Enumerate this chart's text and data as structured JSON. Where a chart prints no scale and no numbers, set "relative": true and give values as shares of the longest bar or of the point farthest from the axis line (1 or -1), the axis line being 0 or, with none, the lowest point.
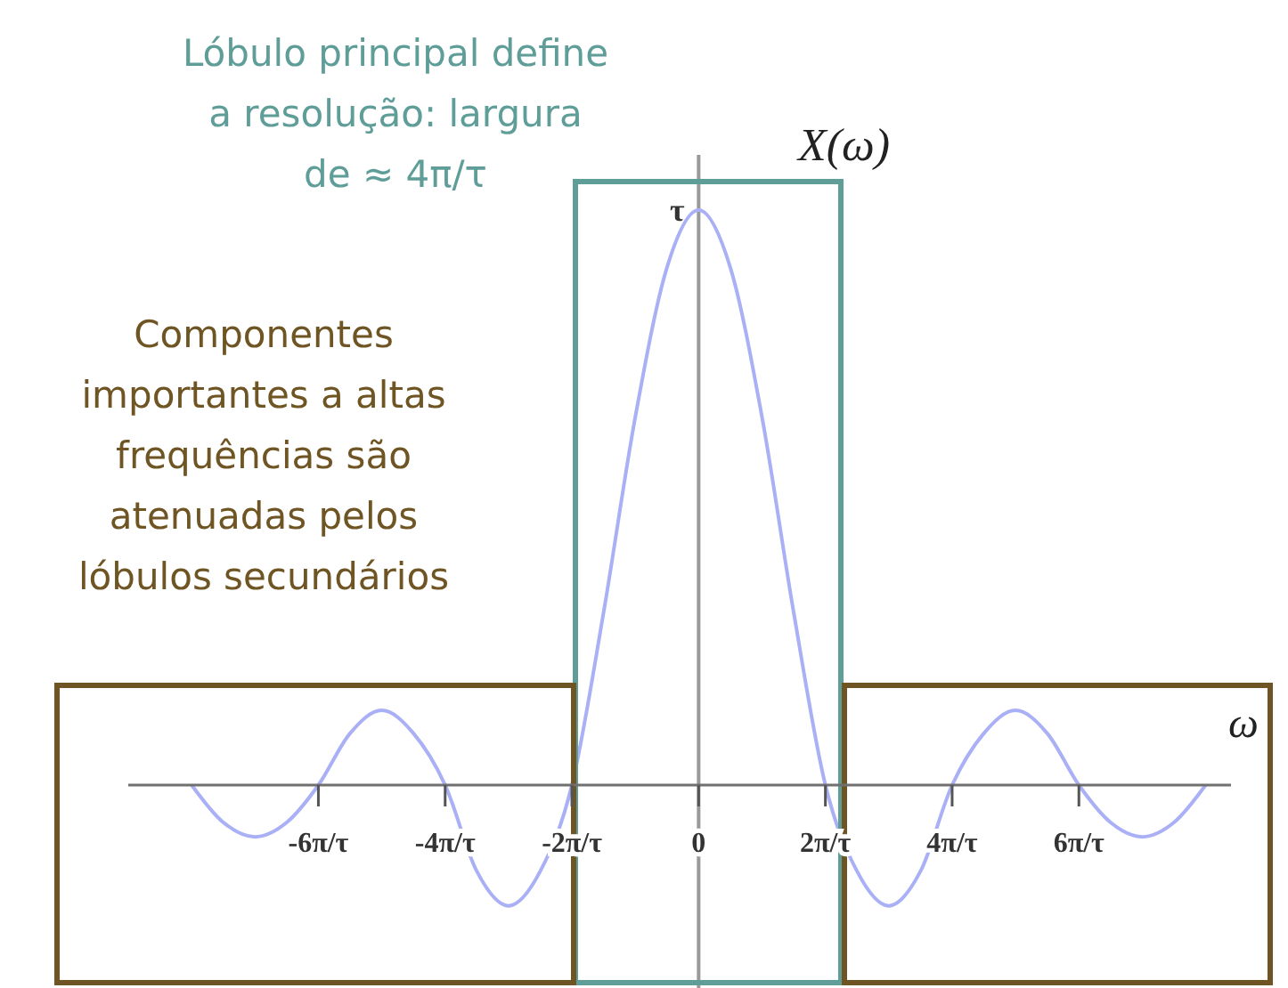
{
  "chart_data": {
    "type": "line",
    "relative": true,
    "xlabel": "ω",
    "ylabel": "X(ω)",
    "categories": [
      null,
      null,
      null,
      null,
      "-6π/τ",
      null,
      null,
      null,
      "-4π/τ",
      null,
      null,
      null,
      "-2π/τ",
      null,
      null,
      null,
      "0",
      null,
      null,
      null,
      "2π/τ",
      null,
      null,
      null,
      "4π/τ",
      null,
      null,
      null,
      "6π/τ",
      null,
      null,
      null,
      null
    ],
    "series": [
      {
        "color": "#aab0f5",
        "values": [
          0,
          -0.065,
          -0.09,
          -0.065,
          0,
          0.09,
          0.13,
          0.09,
          0,
          -0.15,
          -0.21,
          -0.15,
          0,
          0.3,
          0.64,
          0.9,
          1,
          0.9,
          0.64,
          0.3,
          0,
          -0.15,
          -0.21,
          -0.15,
          0,
          0.09,
          0.13,
          0.09,
          0,
          -0.065,
          -0.09,
          -0.065,
          0
        ]
      }
    ],
    "annotations": [
      {
        "text": "τ",
        "x": "0",
        "y": 1
      },
      "Lóbulo principal define\na resolução: largura\nde ≈ 4π/τ",
      "Componentes\nimportantes a altas\nfrequências são\natenuadas pelos\nlóbulos secundários"
    ]
  }
}
